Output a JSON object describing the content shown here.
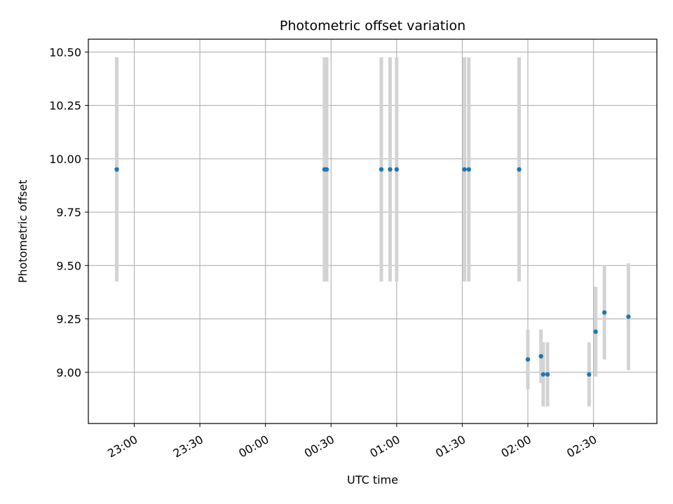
{
  "chart_data": {
    "type": "scatter",
    "title": "Photometric offset variation",
    "xlabel": "UTC time",
    "ylabel": "Photometric offset",
    "x_is_time": true,
    "x_ticks": [
      {
        "time": "23:00",
        "label": "23:00"
      },
      {
        "time": "23:30",
        "label": "23:30"
      },
      {
        "time": "00:00",
        "label": "00:00"
      },
      {
        "time": "00:30",
        "label": "00:30"
      },
      {
        "time": "01:00",
        "label": "01:00"
      },
      {
        "time": "01:30",
        "label": "01:30"
      },
      {
        "time": "02:00",
        "label": "02:00"
      },
      {
        "time": "02:30",
        "label": "02:30"
      }
    ],
    "y_ticks": [
      9.0,
      9.25,
      9.5,
      9.75,
      10.0,
      10.25,
      10.5
    ],
    "y_tick_labels": [
      "9.00",
      "9.25",
      "9.50",
      "9.75",
      "10.00",
      "10.25",
      "10.50"
    ],
    "xlim": [
      "22:39",
      "02:59"
    ],
    "ylim": [
      8.76,
      10.56
    ],
    "grid": true,
    "marker_color": "#1f77b4",
    "errorbar_color": "#d3d3d3",
    "points": [
      {
        "x": "22:52",
        "y": 9.95,
        "yerr": 0.525
      },
      {
        "x": "00:27",
        "y": 9.95,
        "yerr": 0.525
      },
      {
        "x": "00:28",
        "y": 9.95,
        "yerr": 0.525
      },
      {
        "x": "00:53",
        "y": 9.95,
        "yerr": 0.525
      },
      {
        "x": "00:57",
        "y": 9.95,
        "yerr": 0.525
      },
      {
        "x": "01:00",
        "y": 9.95,
        "yerr": 0.525
      },
      {
        "x": "01:31",
        "y": 9.95,
        "yerr": 0.525
      },
      {
        "x": "01:33",
        "y": 9.95,
        "yerr": 0.525
      },
      {
        "x": "01:56",
        "y": 9.95,
        "yerr": 0.525
      },
      {
        "x": "02:00",
        "y": 9.06,
        "yerr": 0.14
      },
      {
        "x": "02:06",
        "y": 9.075,
        "yerr": 0.125
      },
      {
        "x": "02:07",
        "y": 8.99,
        "yerr": 0.15
      },
      {
        "x": "02:09",
        "y": 8.99,
        "yerr": 0.15
      },
      {
        "x": "02:28",
        "y": 8.99,
        "yerr": 0.15
      },
      {
        "x": "02:31",
        "y": 9.19,
        "yerr": 0.21
      },
      {
        "x": "02:35",
        "y": 9.28,
        "yerr": 0.22
      },
      {
        "x": "02:46",
        "y": 9.26,
        "yerr": 0.25
      }
    ]
  }
}
